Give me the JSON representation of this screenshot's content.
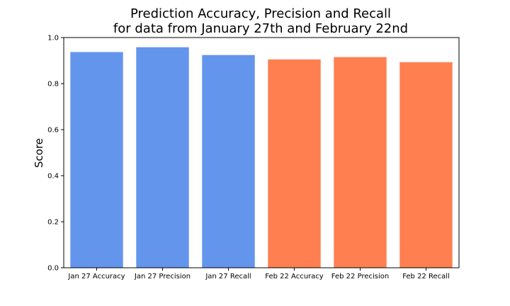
{
  "chart_data": {
    "type": "bar",
    "title": "Prediction Accuracy, Precision and Recall",
    "subtitle": "for data from January 27th and February 22nd",
    "xlabel": "",
    "ylabel": "Score",
    "ylim": [
      0,
      1.0
    ],
    "yticks": [
      "0.0",
      "0.2",
      "0.4",
      "0.6",
      "0.8",
      "1.0"
    ],
    "grid": false,
    "categories": [
      "Jan 27 Accuracy",
      "Jan 27 Precision",
      "Jan 27 Recall",
      "Feb 22 Accuracy",
      "Feb 22 Precision",
      "Feb 22 Recall"
    ],
    "values": [
      0.937,
      0.958,
      0.924,
      0.905,
      0.915,
      0.893
    ],
    "colors": [
      "#6495ed",
      "#6495ed",
      "#6495ed",
      "#ff7f50",
      "#ff7f50",
      "#ff7f50"
    ]
  }
}
